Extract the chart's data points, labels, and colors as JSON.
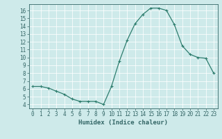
{
  "x": [
    0,
    1,
    2,
    3,
    4,
    5,
    6,
    7,
    8,
    9,
    10,
    11,
    12,
    13,
    14,
    15,
    16,
    17,
    18,
    19,
    20,
    21,
    22,
    23
  ],
  "y": [
    6.3,
    6.3,
    6.1,
    5.7,
    5.3,
    4.7,
    4.4,
    4.4,
    4.4,
    4.0,
    6.3,
    9.5,
    12.2,
    14.3,
    15.5,
    16.3,
    16.3,
    16.0,
    14.2,
    11.5,
    10.4,
    10.0,
    9.9,
    8.0
  ],
  "line_color": "#2e7d6e",
  "marker": "+",
  "marker_size": 3,
  "marker_linewidth": 0.8,
  "linewidth": 0.9,
  "xlabel": "Humidex (Indice chaleur)",
  "ylim": [
    3.5,
    16.8
  ],
  "xlim": [
    -0.5,
    23.5
  ],
  "yticks": [
    4,
    5,
    6,
    7,
    8,
    9,
    10,
    11,
    12,
    13,
    14,
    15,
    16
  ],
  "xticks": [
    0,
    1,
    2,
    3,
    4,
    5,
    6,
    7,
    8,
    9,
    10,
    11,
    12,
    13,
    14,
    15,
    16,
    17,
    18,
    19,
    20,
    21,
    22,
    23
  ],
  "bg_color": "#ceeaea",
  "grid_color": "#b8d8d8",
  "axis_color": "#336666",
  "text_color": "#336666",
  "label_fontsize": 6.5,
  "tick_fontsize": 5.5
}
